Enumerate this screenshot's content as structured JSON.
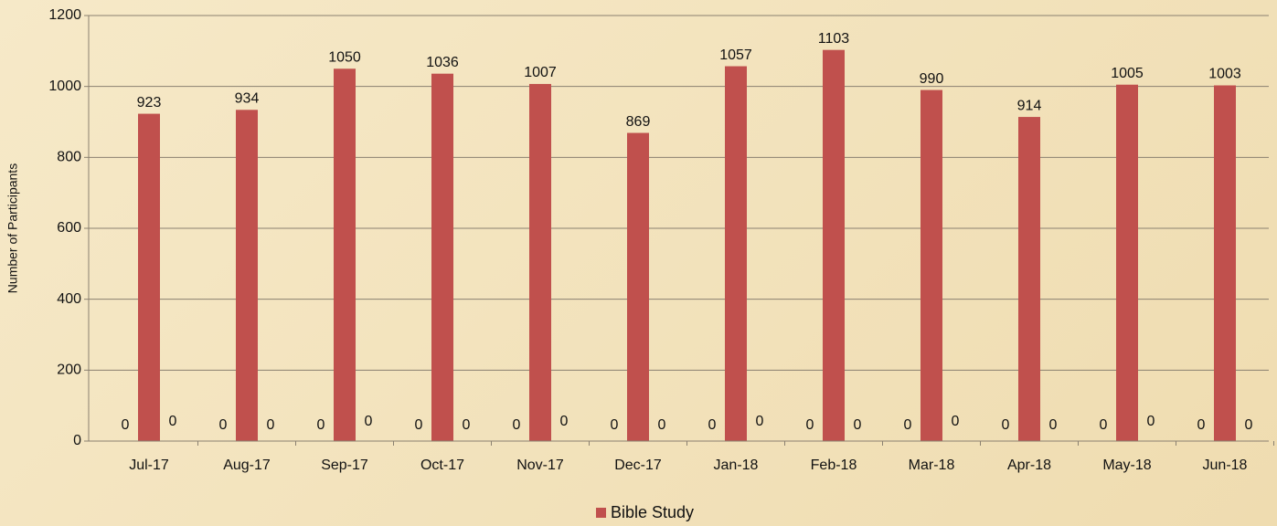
{
  "chart_data": {
    "type": "bar",
    "y_label": "Number of Participants",
    "categories": [
      "Jul-17",
      "Aug-17",
      "Sep-17",
      "Oct-17",
      "Nov-17",
      "Dec-17",
      "Jan-18",
      "Feb-18",
      "Mar-18",
      "Apr-18",
      "May-18",
      "Jun-18"
    ],
    "series": [
      {
        "values": [
          0,
          0,
          0,
          0,
          0,
          0,
          0,
          0,
          0,
          0,
          0,
          0
        ]
      },
      {
        "name": "Bible Study",
        "color": "#c0504d",
        "values": [
          923,
          934,
          1050,
          1036,
          1007,
          869,
          1057,
          1103,
          990,
          914,
          1005,
          1003
        ]
      },
      {
        "values": [
          0,
          0,
          0,
          0,
          0,
          0,
          0,
          0,
          0,
          0,
          0,
          0
        ]
      }
    ],
    "ylim": [
      0,
      1200
    ],
    "yticks": [
      0,
      200,
      400,
      600,
      800,
      1000,
      1200
    ],
    "grid": true,
    "legend": "bottom"
  }
}
